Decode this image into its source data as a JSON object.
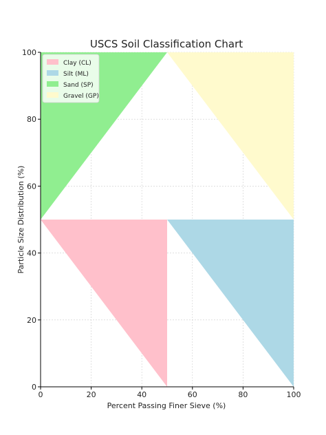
{
  "chart_data": {
    "type": "area",
    "title": "USCS Soil Classification Chart",
    "xlabel": "Percent Passing Finer Sieve (%)",
    "ylabel": "Particle Size Distribution (%)",
    "xlim": [
      0,
      100
    ],
    "ylim": [
      0,
      100
    ],
    "xticks": [
      "0",
      "20",
      "40",
      "60",
      "80",
      "100"
    ],
    "yticks": [
      "0",
      "20",
      "40",
      "60",
      "80",
      "100"
    ],
    "grid": true,
    "legend_position": "top-left",
    "regions": [
      {
        "name": "Clay (CL)",
        "color": "#ffc0cb",
        "points": [
          [
            0,
            50
          ],
          [
            50,
            50
          ],
          [
            50,
            0
          ]
        ]
      },
      {
        "name": "Silt (ML)",
        "color": "#add8e6",
        "points": [
          [
            50,
            50
          ],
          [
            100,
            50
          ],
          [
            100,
            0
          ]
        ]
      },
      {
        "name": "Sand (SP)",
        "color": "#90ee90",
        "points": [
          [
            0,
            50
          ],
          [
            0,
            100
          ],
          [
            50,
            100
          ]
        ]
      },
      {
        "name": "Gravel (GP)",
        "color": "#fffacd",
        "points": [
          [
            50,
            100
          ],
          [
            100,
            100
          ],
          [
            100,
            50
          ]
        ]
      }
    ]
  }
}
